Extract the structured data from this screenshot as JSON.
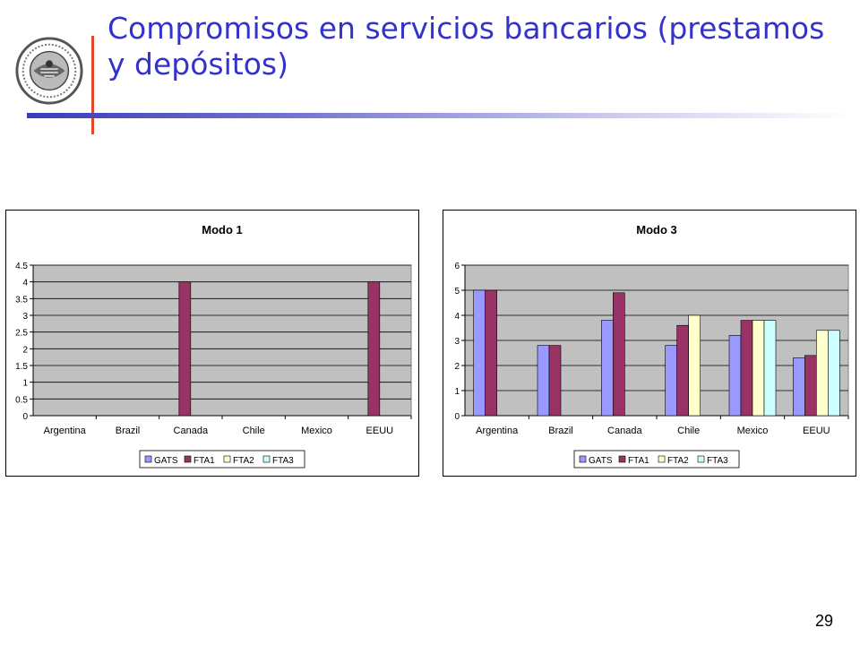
{
  "slide": {
    "title": "Compromisos en servicios bancarios (prestamos y depósitos)",
    "number": "29"
  },
  "colors": {
    "title": "#3333cc",
    "accent_line": "#e04a2a",
    "plot_bg": "#c0c0c0",
    "series": {
      "GATS": "#9999ff",
      "FTA1": "#993366",
      "FTA2": "#ffffcc",
      "FTA3": "#ccffff"
    }
  },
  "chart_data": [
    {
      "type": "bar",
      "title": "Modo 1",
      "categories": [
        "Argentina",
        "Brazil",
        "Canada",
        "Chile",
        "Mexico",
        "EEUU"
      ],
      "series": [
        {
          "name": "GATS",
          "values": [
            0,
            0,
            0,
            0,
            0,
            0
          ]
        },
        {
          "name": "FTA1",
          "values": [
            0,
            0,
            4,
            0,
            0,
            4
          ]
        },
        {
          "name": "FTA2",
          "values": [
            0,
            0,
            0,
            0,
            0,
            0
          ]
        },
        {
          "name": "FTA3",
          "values": [
            0,
            0,
            0,
            0,
            0,
            0
          ]
        }
      ],
      "ylim": [
        0,
        4.5
      ],
      "yticks": [
        "0",
        "0.5",
        "1",
        "1.5",
        "2",
        "2.5",
        "3",
        "3.5",
        "4",
        "4.5"
      ],
      "grid": true,
      "legend": "bottom"
    },
    {
      "type": "bar",
      "title": "Modo 3",
      "categories": [
        "Argentina",
        "Brazil",
        "Canada",
        "Chile",
        "Mexico",
        "EEUU"
      ],
      "series": [
        {
          "name": "GATS",
          "values": [
            5,
            2.8,
            3.8,
            2.8,
            3.2,
            2.3
          ]
        },
        {
          "name": "FTA1",
          "values": [
            5,
            2.8,
            4.9,
            3.6,
            3.8,
            2.4
          ]
        },
        {
          "name": "FTA2",
          "values": [
            0,
            0,
            0,
            4,
            3.8,
            3.4
          ]
        },
        {
          "name": "FTA3",
          "values": [
            0,
            0,
            0,
            0,
            3.8,
            3.4
          ]
        }
      ],
      "ylim": [
        0,
        6
      ],
      "yticks": [
        "0",
        "1",
        "2",
        "3",
        "4",
        "5",
        "6"
      ],
      "grid": true,
      "legend": "bottom"
    }
  ]
}
